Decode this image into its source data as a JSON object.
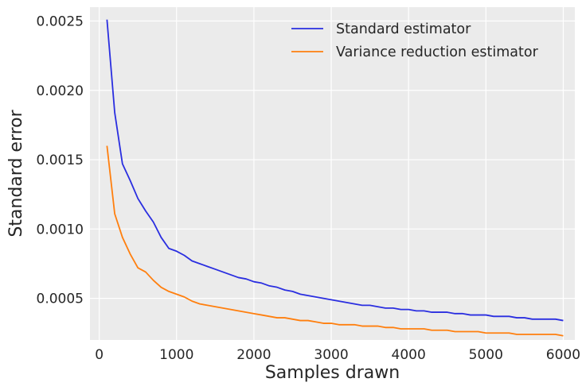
{
  "chart_data": {
    "type": "line",
    "title": "",
    "xlabel": "Samples drawn",
    "ylabel": "Standard error",
    "xlim": [
      -120,
      6150
    ],
    "ylim": [
      0.0002,
      0.0026
    ],
    "xticks": [
      0,
      1000,
      2000,
      3000,
      4000,
      5000,
      6000
    ],
    "xtick_labels": [
      "0",
      "1000",
      "2000",
      "3000",
      "4000",
      "5000",
      "6000"
    ],
    "yticks": [
      0.0005,
      0.001,
      0.0015,
      0.002,
      0.0025
    ],
    "ytick_labels": [
      "0.0005",
      "0.0010",
      "0.0015",
      "0.0020",
      "0.0025"
    ],
    "grid": true,
    "legend_position": "top-right",
    "series": [
      {
        "name": "Standard estimator",
        "color": "#2a2ee0",
        "x": [
          100,
          200,
          300,
          400,
          500,
          600,
          700,
          800,
          900,
          1000,
          1100,
          1200,
          1300,
          1400,
          1500,
          1600,
          1700,
          1800,
          1900,
          2000,
          2100,
          2200,
          2300,
          2400,
          2500,
          2600,
          2700,
          2800,
          2900,
          3000,
          3100,
          3200,
          3300,
          3400,
          3500,
          3600,
          3700,
          3800,
          3900,
          4000,
          4100,
          4200,
          4300,
          4400,
          4500,
          4600,
          4700,
          4800,
          4900,
          5000,
          5100,
          5200,
          5300,
          5400,
          5500,
          5600,
          5700,
          5800,
          5900,
          6000
        ],
        "y": [
          0.00251,
          0.00184,
          0.00147,
          0.00135,
          0.00122,
          0.00113,
          0.00105,
          0.00094,
          0.00086,
          0.00084,
          0.00081,
          0.00077,
          0.00075,
          0.00073,
          0.00071,
          0.00069,
          0.00067,
          0.00065,
          0.00064,
          0.00062,
          0.00061,
          0.00059,
          0.00058,
          0.00056,
          0.00055,
          0.00053,
          0.00052,
          0.00051,
          0.0005,
          0.00049,
          0.00048,
          0.00047,
          0.00046,
          0.00045,
          0.00045,
          0.00044,
          0.00043,
          0.00043,
          0.00042,
          0.00042,
          0.00041,
          0.00041,
          0.0004,
          0.0004,
          0.0004,
          0.00039,
          0.00039,
          0.00038,
          0.00038,
          0.00038,
          0.00037,
          0.00037,
          0.00037,
          0.00036,
          0.00036,
          0.00035,
          0.00035,
          0.00035,
          0.00035,
          0.00034
        ]
      },
      {
        "name": "Variance reduction estimator",
        "color": "#ff7f0e",
        "x": [
          100,
          200,
          300,
          400,
          500,
          600,
          700,
          800,
          900,
          1000,
          1100,
          1200,
          1300,
          1400,
          1500,
          1600,
          1700,
          1800,
          1900,
          2000,
          2100,
          2200,
          2300,
          2400,
          2500,
          2600,
          2700,
          2800,
          2900,
          3000,
          3100,
          3200,
          3300,
          3400,
          3500,
          3600,
          3700,
          3800,
          3900,
          4000,
          4100,
          4200,
          4300,
          4400,
          4500,
          4600,
          4700,
          4800,
          4900,
          5000,
          5100,
          5200,
          5300,
          5400,
          5500,
          5600,
          5700,
          5800,
          5900,
          6000
        ],
        "y": [
          0.0016,
          0.00111,
          0.00094,
          0.00082,
          0.00072,
          0.00069,
          0.00063,
          0.00058,
          0.00055,
          0.00053,
          0.00051,
          0.00048,
          0.00046,
          0.00045,
          0.00044,
          0.00043,
          0.00042,
          0.00041,
          0.0004,
          0.00039,
          0.00038,
          0.00037,
          0.00036,
          0.00036,
          0.00035,
          0.00034,
          0.00034,
          0.00033,
          0.00032,
          0.00032,
          0.00031,
          0.00031,
          0.00031,
          0.0003,
          0.0003,
          0.0003,
          0.00029,
          0.00029,
          0.00028,
          0.00028,
          0.00028,
          0.00028,
          0.00027,
          0.00027,
          0.00027,
          0.00026,
          0.00026,
          0.00026,
          0.00026,
          0.00025,
          0.00025,
          0.00025,
          0.00025,
          0.00024,
          0.00024,
          0.00024,
          0.00024,
          0.00024,
          0.00024,
          0.00023
        ]
      }
    ]
  }
}
